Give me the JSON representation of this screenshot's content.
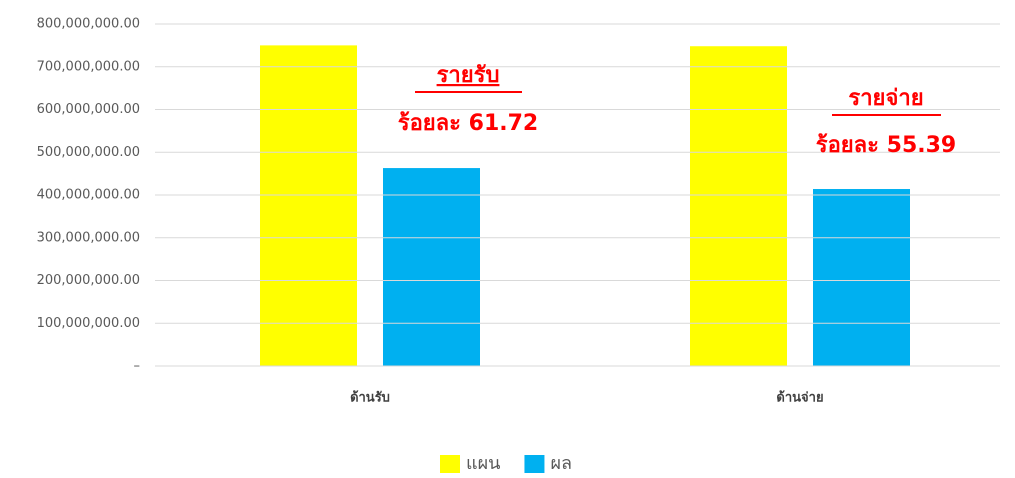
{
  "chart_data": {
    "type": "bar",
    "categories": [
      "ด้านรับ",
      "ด้านจ่าย"
    ],
    "series": [
      {
        "name": "แผน",
        "color": "#ffff00",
        "values": [
          750000000,
          748000000
        ]
      },
      {
        "name": "ผล",
        "color": "#00b0f0",
        "values": [
          463000000,
          414000000
        ]
      }
    ],
    "ylim": [
      0,
      800000000
    ],
    "yticks": [
      {
        "value": 0,
        "label": "–"
      },
      {
        "value": 100000000,
        "label": "100,000,000.00"
      },
      {
        "value": 200000000,
        "label": "200,000,000.00"
      },
      {
        "value": 300000000,
        "label": "300,000,000.00"
      },
      {
        "value": 400000000,
        "label": "400,000,000.00"
      },
      {
        "value": 500000000,
        "label": "500,000,000.00"
      },
      {
        "value": 600000000,
        "label": "600,000,000.00"
      },
      {
        "value": 700000000,
        "label": "700,000,000.00"
      },
      {
        "value": 800000000,
        "label": "800,000,000.00"
      }
    ],
    "grid": true,
    "legend": "bottom",
    "annotations": [
      "รายรับ",
      "ร้อยละ 61.72",
      "รายจ่าย",
      "ร้อยละ 55.39"
    ]
  }
}
